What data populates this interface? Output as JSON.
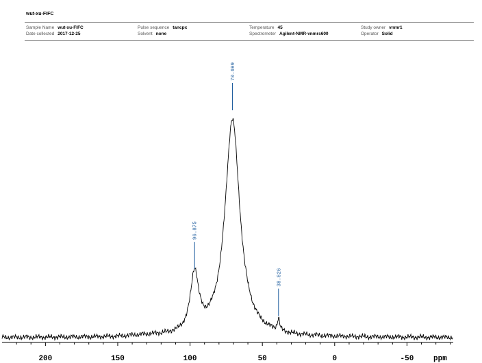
{
  "header": {
    "title": "wut-xu-FIFC",
    "fields": [
      {
        "key": "sample_name",
        "label": "Sample Name",
        "value": "wut-xu-FIFC"
      },
      {
        "key": "date_collected",
        "label": "Date collected",
        "value": "2017-12-25"
      },
      {
        "key": "pulse_sequence",
        "label": "Pulse sequence",
        "value": "tancpx"
      },
      {
        "key": "solvent",
        "label": "Solvent",
        "value": "none"
      },
      {
        "key": "temperature",
        "label": "Temperature",
        "value": "45"
      },
      {
        "key": "spectrometer",
        "label": "Spectrometer",
        "value": "Agilent-NMR-vnmrs600"
      },
      {
        "key": "study_owner",
        "label": "Study owner",
        "value": "vnmr1"
      },
      {
        "key": "operator",
        "label": "Operator",
        "value": "Solid"
      }
    ]
  },
  "chart_data": {
    "type": "line",
    "title": "",
    "xlabel": "ppm",
    "ylabel": "",
    "x_reversed": true,
    "xlim": [
      230,
      -82
    ],
    "x_ticks": [
      200,
      150,
      100,
      50,
      0,
      -50
    ],
    "tick_labels": [
      "200",
      "150",
      "100",
      "50",
      "0",
      "-50"
    ],
    "peaks": [
      {
        "ppm": 96.875,
        "label": "96.875",
        "height": 0.27
      },
      {
        "ppm": 70.699,
        "label": "70.699",
        "height": 1.0
      },
      {
        "ppm": 38.826,
        "label": "38.826",
        "height": 0.055
      }
    ],
    "line_color": "#000000",
    "label_color": "#1a5a9c",
    "grid": false,
    "legend": "none"
  }
}
